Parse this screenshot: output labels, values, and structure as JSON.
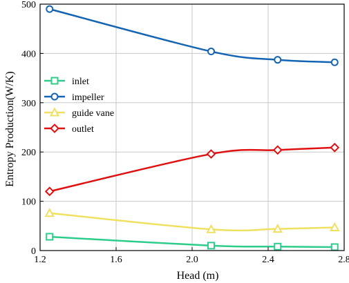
{
  "chart_data": {
    "type": "line",
    "xlabel": "Head (m)",
    "ylabel": "Entropy Production(W/K)",
    "xlim": [
      1.2,
      2.8
    ],
    "ylim": [
      0,
      500
    ],
    "xticks": [
      1.2,
      1.6,
      2.0,
      2.4,
      2.8
    ],
    "yticks": [
      0,
      100,
      200,
      300,
      400,
      500
    ],
    "xtick_labels": [
      "1.2",
      "1.6",
      "2.0",
      "2.4",
      "2.8"
    ],
    "ytick_labels": [
      "0",
      "100",
      "200",
      "300",
      "400",
      "500"
    ],
    "grid": true,
    "legend_position": "upper-left",
    "series": [
      {
        "name": "inlet",
        "marker": "square",
        "color": "#2ecc8a",
        "x": [
          1.25,
          2.1,
          2.45,
          2.75
        ],
        "y": [
          28,
          10,
          8,
          7
        ]
      },
      {
        "name": "impeller",
        "marker": "circle",
        "color": "#1464b4",
        "x": [
          1.25,
          2.1,
          2.45,
          2.75
        ],
        "y": [
          490,
          404,
          387,
          382
        ]
      },
      {
        "name": "guide vane",
        "marker": "triangle",
        "color": "#f0e060",
        "x": [
          1.25,
          2.1,
          2.45,
          2.75
        ],
        "y": [
          76,
          43,
          44,
          47
        ]
      },
      {
        "name": "outlet",
        "marker": "diamond",
        "color": "#e01010",
        "x": [
          1.25,
          2.1,
          2.45,
          2.75
        ],
        "y": [
          120,
          196,
          204,
          209
        ]
      }
    ]
  }
}
